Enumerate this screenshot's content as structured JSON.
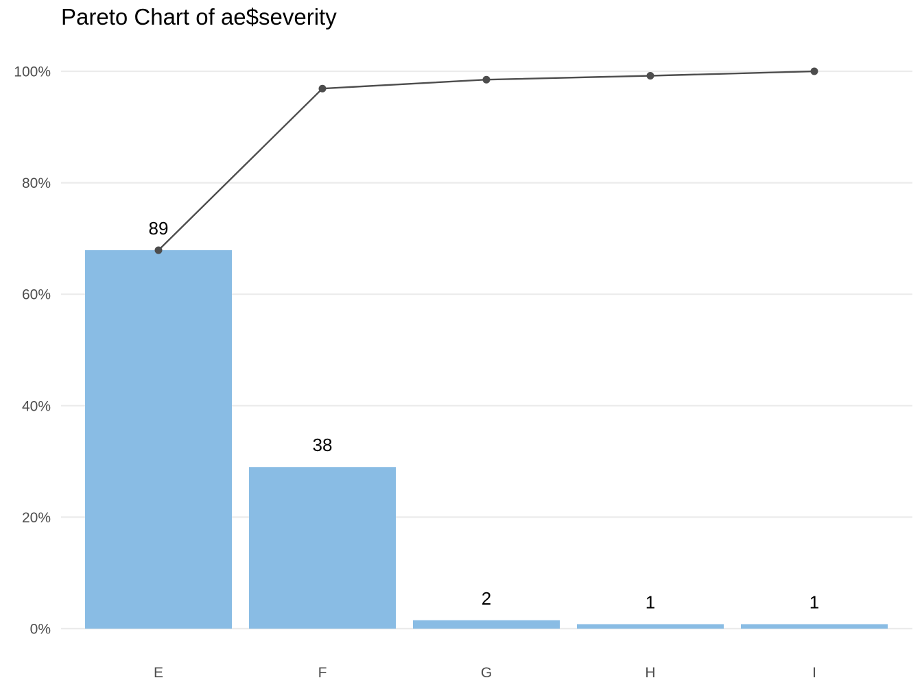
{
  "chart_data": {
    "type": "bar",
    "title": "Pareto Chart of ae$severity",
    "xlabel": "",
    "ylabel": "",
    "categories": [
      "E",
      "F",
      "G",
      "H",
      "I"
    ],
    "counts": [
      89,
      38,
      2,
      1,
      1
    ],
    "bar_percent": [
      67.9,
      29.0,
      1.5,
      0.8,
      0.8
    ],
    "cumulative_percent": [
      67.9,
      96.9,
      98.5,
      99.2,
      100.0
    ],
    "data_labels": [
      "89",
      "38",
      "2",
      "1",
      "1"
    ],
    "y_tick_labels": [
      "0%",
      "20%",
      "40%",
      "60%",
      "80%",
      "100%"
    ],
    "y_ticks": [
      0,
      20,
      40,
      60,
      80,
      100
    ],
    "ylim": [
      0,
      100
    ],
    "grid": true,
    "legend": "none",
    "colors": {
      "bar": "#89bce4",
      "line": "#4d4d4d",
      "grid": "#ebebeb"
    }
  }
}
